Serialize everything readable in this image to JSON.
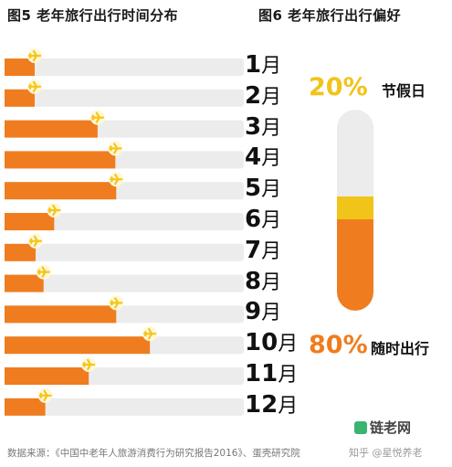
{
  "titles": {
    "left": "图5 老年旅行出行时间分布",
    "right": "图6 老年旅行出行偏好"
  },
  "chart_data": [
    {
      "type": "bar",
      "title": "图5 老年旅行出行时间分布",
      "orientation": "horizontal",
      "categories": [
        "1",
        "2",
        "3",
        "4",
        "5",
        "6",
        "7",
        "8",
        "9",
        "10",
        "11",
        "12"
      ],
      "category_unit": "月",
      "values": [
        3.4,
        3.4,
        10.5,
        12.5,
        12.6,
        5.6,
        3.5,
        4.4,
        12.6,
        16.4,
        9.5,
        4.6
      ],
      "xlim": [
        0,
        27
      ],
      "colors": {
        "bar": "#ef7d1f",
        "track": "#ececec",
        "plane": "#f5c518"
      }
    },
    {
      "type": "bar",
      "subtype": "stacked-tube",
      "title": "图6 老年旅行出行偏好",
      "categories": [
        "节假日",
        "随时出行"
      ],
      "values": [
        20,
        80
      ],
      "value_labels": [
        "20%",
        "80%"
      ],
      "colors": {
        "节假日": "#f0c419",
        "随时出行": "#ef7d1f"
      }
    }
  ],
  "source": "数据来源：《中国中老年人旅游消费行为研究报告2016》、蛋壳研究院",
  "brand": "链老网",
  "watermark": "知乎 @星悦养老"
}
